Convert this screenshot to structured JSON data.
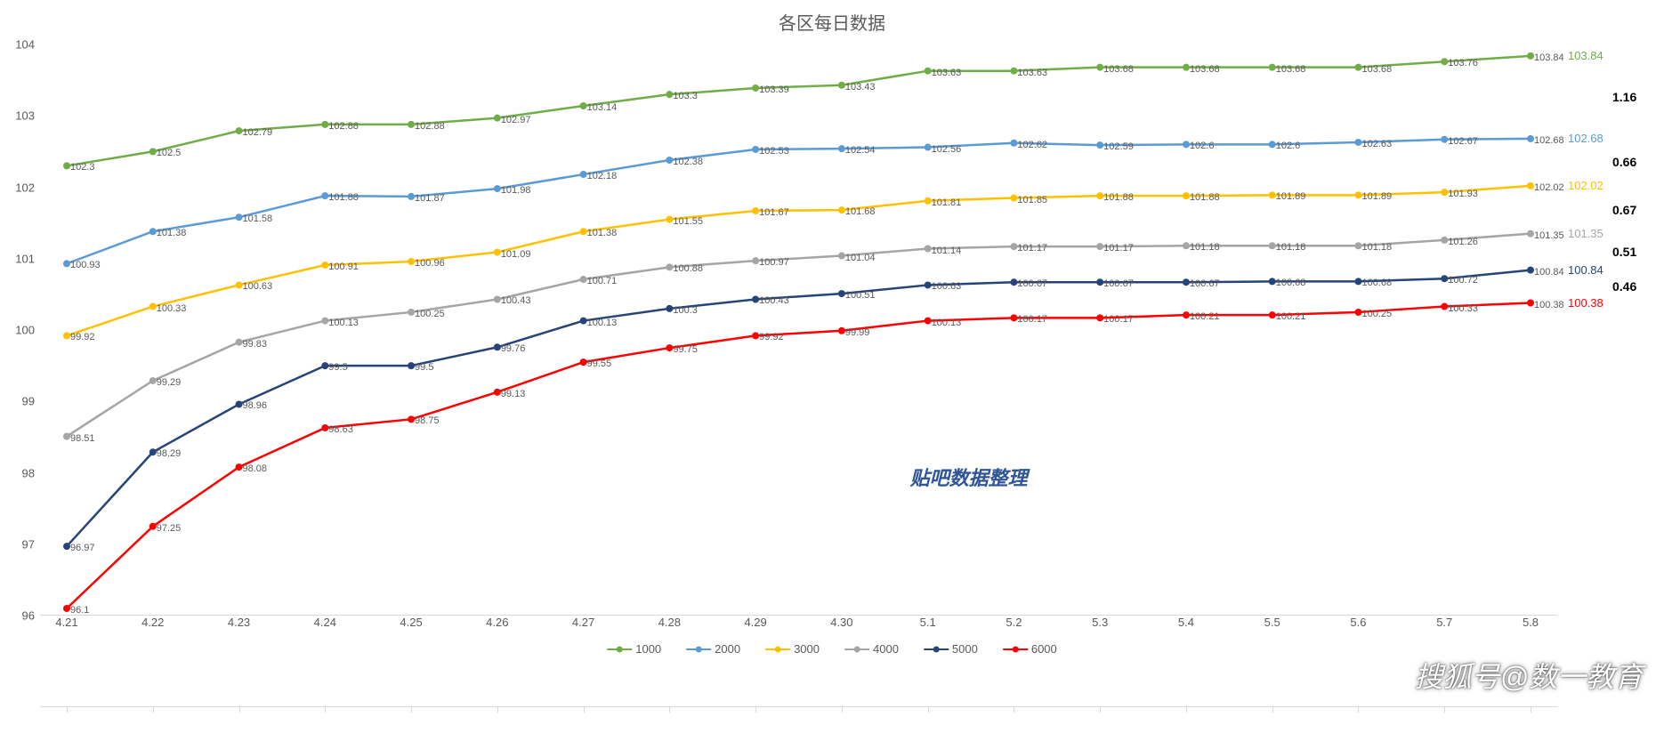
{
  "chart": {
    "type": "line",
    "title": "各区每日数据",
    "title_fontsize": 20,
    "title_color": "#595959",
    "background_color": "#ffffff",
    "grid": false,
    "line_width": 2.5,
    "marker_size": 4,
    "marker_style": "circle",
    "label_fontsize": 11,
    "axis_fontsize": 13,
    "axis_color": "#595959",
    "x_categories": [
      "4.21",
      "4.22",
      "4.23",
      "4.24",
      "4.25",
      "4.26",
      "4.27",
      "4.28",
      "4.29",
      "4.30",
      "5.1",
      "5.2",
      "5.3",
      "5.4",
      "5.5",
      "5.6",
      "5.7",
      "5.8"
    ],
    "ylim": [
      96,
      104
    ],
    "ytick_step": 1,
    "yticks": [
      96,
      97,
      98,
      99,
      100,
      101,
      102,
      103,
      104
    ],
    "series": [
      {
        "name": "1000",
        "color": "#70ad47",
        "values": [
          102.3,
          102.5,
          102.79,
          102.88,
          102.88,
          102.97,
          103.14,
          103.3,
          103.39,
          103.43,
          103.63,
          103.63,
          103.68,
          103.68,
          103.68,
          103.68,
          103.76,
          103.84
        ],
        "end_label": "103.84"
      },
      {
        "name": "2000",
        "color": "#5b9bd5",
        "values": [
          100.93,
          101.38,
          101.58,
          101.88,
          101.87,
          101.98,
          102.18,
          102.38,
          102.53,
          102.54,
          102.56,
          102.62,
          102.59,
          102.6,
          102.6,
          102.63,
          102.67,
          102.68
        ],
        "end_label": "102.68"
      },
      {
        "name": "3000",
        "color": "#ffc000",
        "values": [
          99.92,
          100.33,
          100.63,
          100.91,
          100.96,
          101.09,
          101.38,
          101.55,
          101.67,
          101.68,
          101.81,
          101.85,
          101.88,
          101.88,
          101.89,
          101.89,
          101.93,
          102.02
        ],
        "end_label": "102.02"
      },
      {
        "name": "4000",
        "color": "#a5a5a5",
        "values": [
          98.51,
          99.29,
          99.83,
          100.13,
          100.25,
          100.43,
          100.71,
          100.88,
          100.97,
          101.04,
          101.14,
          101.17,
          101.17,
          101.18,
          101.18,
          101.18,
          101.26,
          101.35
        ],
        "end_label": "101.35"
      },
      {
        "name": "5000",
        "color": "#264478",
        "values": [
          96.97,
          98.29,
          98.96,
          99.5,
          99.5,
          99.76,
          100.13,
          100.3,
          100.43,
          100.51,
          100.63,
          100.67,
          100.67,
          100.67,
          100.68,
          100.68,
          100.72,
          100.84
        ],
        "end_label": "100.84"
      },
      {
        "name": "6000",
        "color": "#ff0000",
        "values": [
          96.1,
          97.25,
          98.08,
          98.63,
          98.75,
          99.13,
          99.55,
          99.75,
          99.92,
          99.99,
          100.13,
          100.17,
          100.17,
          100.21,
          100.21,
          100.25,
          100.33,
          100.38
        ],
        "end_label": "100.38"
      }
    ],
    "diffs_right": [
      "1.16",
      "0.66",
      "0.67",
      "0.51",
      "0.46"
    ],
    "credit_text": "贴吧数据整理",
    "credit_color": "#2f5597",
    "brand_text": "搜狐号@数一教育"
  }
}
